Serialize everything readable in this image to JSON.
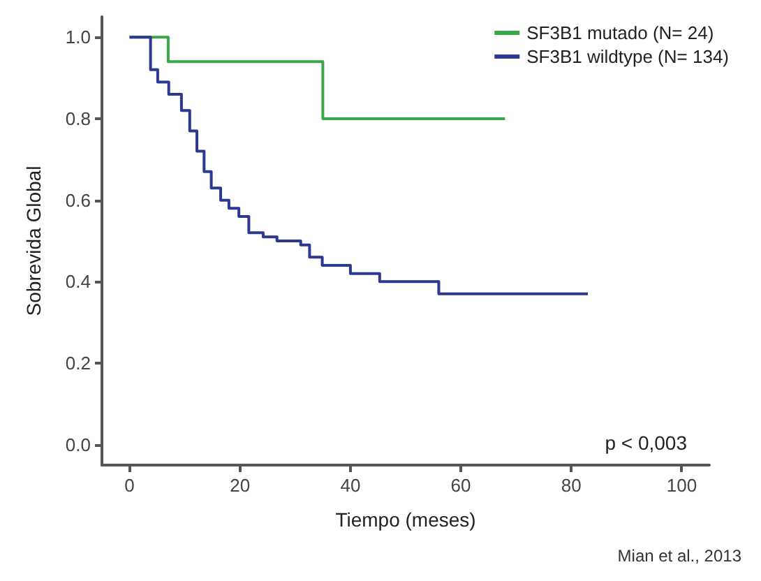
{
  "chart_data": {
    "type": "step",
    "xlabel": "Tiempo (meses)",
    "ylabel": "Sobrevida Global",
    "xlim": [
      -5,
      105
    ],
    "xticks": [
      0,
      20,
      40,
      60,
      80,
      100
    ],
    "ylim": [
      -0.05,
      1.05
    ],
    "yticks": [
      {
        "value": 0,
        "label": "0.0"
      },
      0.2,
      0.4,
      0.6,
      0.8,
      {
        "value": 1,
        "label": "1.0"
      }
    ],
    "grid": false,
    "legend": "top right",
    "marker": "none",
    "line_style": "solid",
    "series": [
      {
        "name": "SF3B1 mutado (N= 24)",
        "color": "#3aa64a",
        "x": [
          0,
          7,
          35,
          68
        ],
        "values": [
          1.0,
          0.94,
          0.8,
          0.8
        ]
      },
      {
        "name": "SF3B1 wildtype (N= 134)",
        "color": "#2b3990",
        "x": [
          0,
          0.4,
          3.8,
          5.1,
          7.1,
          9.4,
          10.9,
          12.2,
          13.5,
          14.8,
          16.5,
          18,
          19.8,
          21.6,
          24.2,
          26.7,
          31,
          32.6,
          34.9,
          40,
          45.3,
          56,
          83
        ],
        "values": [
          1.0,
          1.0,
          0.92,
          0.89,
          0.86,
          0.82,
          0.77,
          0.72,
          0.67,
          0.63,
          0.6,
          0.58,
          0.56,
          0.52,
          0.51,
          0.5,
          0.49,
          0.46,
          0.44,
          0.42,
          0.4,
          0.37,
          0.37
        ]
      }
    ],
    "annotations": [
      "p < 0,003",
      "Mian et al., 2013"
    ]
  }
}
